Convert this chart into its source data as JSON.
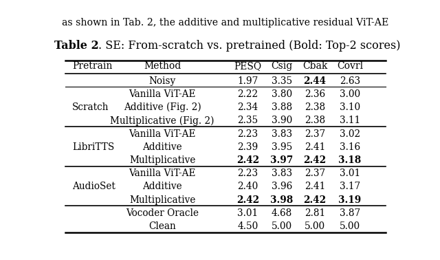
{
  "title_bold": "Table 2",
  "title_normal": ". SE: From-scratch vs. pretrained (Bold: Top-2 scores)",
  "columns": [
    "Pretrain",
    "Method",
    "PESQ",
    "Csig",
    "Cbak",
    "Covrl"
  ],
  "rows": [
    {
      "pretrain": "",
      "method": "Noisy",
      "pesq": "1.97",
      "csig": "3.35",
      "cbak": "2.44",
      "covrl": "2.63",
      "bold": [
        "cbak"
      ]
    },
    {
      "pretrain": "Scratch",
      "method": "Vanilla ViT-AE",
      "pesq": "2.22",
      "csig": "3.80",
      "cbak": "2.36",
      "covrl": "3.00",
      "bold": []
    },
    {
      "pretrain": "",
      "method": "Additive (Fig. 2)",
      "pesq": "2.34",
      "csig": "3.88",
      "cbak": "2.38",
      "covrl": "3.10",
      "bold": []
    },
    {
      "pretrain": "",
      "method": "Multiplicative (Fig. 2)",
      "pesq": "2.35",
      "csig": "3.90",
      "cbak": "2.38",
      "covrl": "3.11",
      "bold": []
    },
    {
      "pretrain": "LibriTTS",
      "method": "Vanilla ViT-AE",
      "pesq": "2.23",
      "csig": "3.83",
      "cbak": "2.37",
      "covrl": "3.02",
      "bold": []
    },
    {
      "pretrain": "",
      "method": "Additive",
      "pesq": "2.39",
      "csig": "3.95",
      "cbak": "2.41",
      "covrl": "3.16",
      "bold": []
    },
    {
      "pretrain": "",
      "method": "Multiplicative",
      "pesq": "2.42",
      "csig": "3.97",
      "cbak": "2.42",
      "covrl": "3.18",
      "bold": [
        "pesq",
        "csig",
        "cbak",
        "covrl"
      ]
    },
    {
      "pretrain": "AudioSet",
      "method": "Vanilla ViT-AE",
      "pesq": "2.23",
      "csig": "3.83",
      "cbak": "2.37",
      "covrl": "3.01",
      "bold": []
    },
    {
      "pretrain": "",
      "method": "Additive",
      "pesq": "2.40",
      "csig": "3.96",
      "cbak": "2.41",
      "covrl": "3.17",
      "bold": []
    },
    {
      "pretrain": "",
      "method": "Multiplicative",
      "pesq": "2.42",
      "csig": "3.98",
      "cbak": "2.42",
      "covrl": "3.19",
      "bold": [
        "pesq",
        "csig",
        "cbak",
        "covrl"
      ]
    },
    {
      "pretrain": "",
      "method": "Vocoder Oracle",
      "pesq": "3.01",
      "csig": "4.68",
      "cbak": "2.81",
      "covrl": "3.87",
      "bold": []
    },
    {
      "pretrain": "",
      "method": "Clean",
      "pesq": "4.50",
      "csig": "5.00",
      "cbak": "5.00",
      "covrl": "5.00",
      "bold": []
    }
  ],
  "pretrain_labels": [
    {
      "label": "Scratch",
      "rows": [
        1,
        2,
        3
      ]
    },
    {
      "label": "LibriTTS",
      "rows": [
        4,
        5,
        6
      ]
    },
    {
      "label": "AudioSet",
      "rows": [
        7,
        8,
        9
      ]
    }
  ],
  "thick_sep_before_rows": [
    1,
    4,
    7,
    10
  ],
  "thin_sep_before_rows": [
    1
  ],
  "background_color": "#ffffff",
  "font_family": "DejaVu Serif",
  "top_text": "as shown in Tab. 2, the additive and multiplicative residual ViT-AE"
}
